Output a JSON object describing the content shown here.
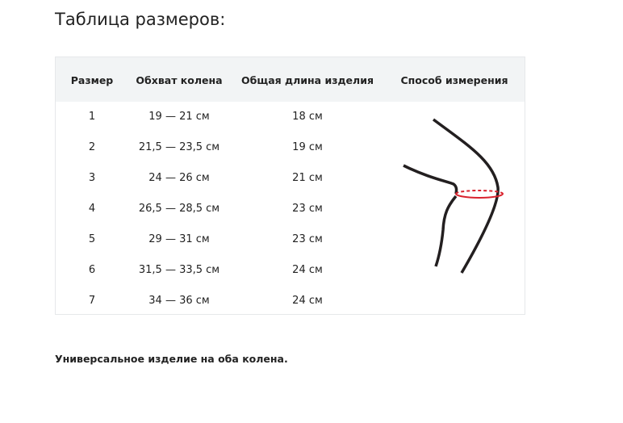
{
  "title": "Таблица размеров:",
  "table": {
    "headers": [
      "Размер",
      "Обхват колена",
      "Общая длина изделия",
      "Способ измерения"
    ],
    "rows": [
      [
        "1",
        "19 — 21 см",
        "18 см"
      ],
      [
        "2",
        "21,5 — 23,5 см",
        "19 см"
      ],
      [
        "3",
        "24 — 26 см",
        "21 см"
      ],
      [
        "4",
        "26,5 — 28,5 см",
        "23 см"
      ],
      [
        "5",
        "29 — 31 см",
        "23 см"
      ],
      [
        "6",
        "31,5 — 33,5 см",
        "24 см"
      ],
      [
        "7",
        "34 — 36 см",
        "24 см"
      ]
    ]
  },
  "note": "Универсальное изделие на оба колена.",
  "colors": {
    "measure_line": "#d9232e",
    "outline": "#231f20",
    "header_bg": "#f2f4f5"
  }
}
